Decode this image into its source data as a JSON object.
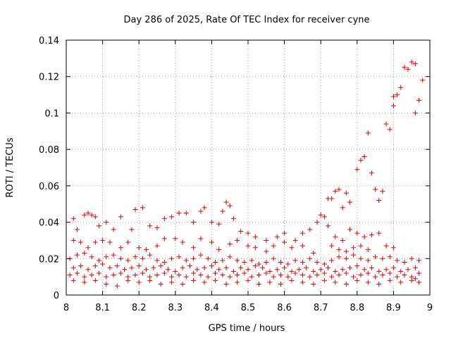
{
  "chart_data": {
    "type": "scatter",
    "title": "Day 286 of 2025, Rate Of TEC Index for receiver cyne",
    "xlabel": "GPS time / hours",
    "ylabel": "ROTI / TECUs",
    "xlim": [
      8,
      9
    ],
    "ylim": [
      0,
      0.14
    ],
    "x_ticks": [
      8,
      8.1,
      8.2,
      8.3,
      8.4,
      8.5,
      8.6,
      8.7,
      8.8,
      8.9,
      9
    ],
    "x_tick_labels": [
      "8",
      "8.1",
      "8.2",
      "8.3",
      "8.4",
      "8.5",
      "8.6",
      "8.7",
      "8.8",
      "8.9",
      "9"
    ],
    "y_ticks": [
      0,
      0.02,
      0.04,
      0.06,
      0.08,
      0.1,
      0.12,
      0.14
    ],
    "y_tick_labels": [
      "0",
      "0.02",
      "0.04",
      "0.06",
      "0.08",
      "0.1",
      "0.12",
      "0.14"
    ],
    "marker": "+",
    "color": "#e00000",
    "series": [
      {
        "name": "ROTI",
        "points": [
          [
            8.02,
            0.042
          ],
          [
            8.03,
            0.036
          ],
          [
            8.05,
            0.044
          ],
          [
            8.06,
            0.045
          ],
          [
            8.07,
            0.044
          ],
          [
            8.08,
            0.043
          ],
          [
            8.09,
            0.038
          ],
          [
            8.11,
            0.04
          ],
          [
            8.13,
            0.036
          ],
          [
            8.15,
            0.043
          ],
          [
            8.18,
            0.036
          ],
          [
            8.19,
            0.047
          ],
          [
            8.21,
            0.048
          ],
          [
            8.23,
            0.038
          ],
          [
            8.25,
            0.037
          ],
          [
            8.27,
            0.042
          ],
          [
            8.29,
            0.043
          ],
          [
            8.31,
            0.045
          ],
          [
            8.33,
            0.045
          ],
          [
            8.35,
            0.04
          ],
          [
            8.37,
            0.046
          ],
          [
            8.38,
            0.048
          ],
          [
            8.4,
            0.04
          ],
          [
            8.42,
            0.039
          ],
          [
            8.43,
            0.046
          ],
          [
            8.44,
            0.051
          ],
          [
            8.45,
            0.049
          ],
          [
            8.46,
            0.042
          ],
          [
            8.48,
            0.035
          ],
          [
            8.5,
            0.034
          ],
          [
            8.52,
            0.032
          ],
          [
            8.55,
            0.03
          ],
          [
            8.58,
            0.032
          ],
          [
            8.6,
            0.034
          ],
          [
            8.63,
            0.03
          ],
          [
            8.65,
            0.034
          ],
          [
            8.67,
            0.036
          ],
          [
            8.69,
            0.04
          ],
          [
            8.02,
            0.03
          ],
          [
            8.04,
            0.029
          ],
          [
            8.06,
            0.026
          ],
          [
            8.08,
            0.029
          ],
          [
            8.1,
            0.03
          ],
          [
            8.12,
            0.029
          ],
          [
            8.15,
            0.026
          ],
          [
            8.17,
            0.029
          ],
          [
            8.2,
            0.026
          ],
          [
            8.22,
            0.025
          ],
          [
            8.25,
            0.027
          ],
          [
            8.27,
            0.031
          ],
          [
            8.3,
            0.031
          ],
          [
            8.32,
            0.029
          ],
          [
            8.35,
            0.026
          ],
          [
            8.37,
            0.031
          ],
          [
            8.4,
            0.029
          ],
          [
            8.42,
            0.025
          ],
          [
            8.45,
            0.028
          ],
          [
            8.47,
            0.03
          ],
          [
            8.5,
            0.027
          ],
          [
            8.52,
            0.026
          ],
          [
            8.55,
            0.024
          ],
          [
            8.57,
            0.027
          ],
          [
            8.6,
            0.029
          ],
          [
            8.62,
            0.026
          ],
          [
            8.65,
            0.027
          ],
          [
            8.68,
            0.023
          ],
          [
            8.01,
            0.02
          ],
          [
            8.03,
            0.022
          ],
          [
            8.05,
            0.023
          ],
          [
            8.07,
            0.021
          ],
          [
            8.09,
            0.019
          ],
          [
            8.11,
            0.021
          ],
          [
            8.13,
            0.022
          ],
          [
            8.15,
            0.02
          ],
          [
            8.17,
            0.019
          ],
          [
            8.19,
            0.021
          ],
          [
            8.21,
            0.02
          ],
          [
            8.23,
            0.022
          ],
          [
            8.25,
            0.019
          ],
          [
            8.27,
            0.018
          ],
          [
            8.29,
            0.02
          ],
          [
            8.31,
            0.021
          ],
          [
            8.33,
            0.019
          ],
          [
            8.35,
            0.02
          ],
          [
            8.37,
            0.022
          ],
          [
            8.39,
            0.02
          ],
          [
            8.41,
            0.018
          ],
          [
            8.43,
            0.019
          ],
          [
            8.45,
            0.021
          ],
          [
            8.47,
            0.019
          ],
          [
            8.49,
            0.018
          ],
          [
            8.51,
            0.019
          ],
          [
            8.53,
            0.017
          ],
          [
            8.55,
            0.018
          ],
          [
            8.57,
            0.02
          ],
          [
            8.59,
            0.018
          ],
          [
            8.61,
            0.017
          ],
          [
            8.63,
            0.019
          ],
          [
            8.65,
            0.018
          ],
          [
            8.67,
            0.02
          ],
          [
            8.69,
            0.018
          ],
          [
            8.71,
            0.017
          ],
          [
            8.73,
            0.019
          ],
          [
            8.75,
            0.021
          ],
          [
            8.77,
            0.02
          ],
          [
            8.79,
            0.022
          ],
          [
            8.81,
            0.02
          ],
          [
            8.83,
            0.019
          ],
          [
            8.85,
            0.021
          ],
          [
            8.87,
            0.02
          ],
          [
            8.89,
            0.021
          ],
          [
            8.91,
            0.019
          ],
          [
            8.93,
            0.018
          ],
          [
            8.95,
            0.02
          ],
          [
            8.97,
            0.019
          ],
          [
            8.02,
            0.015
          ],
          [
            8.04,
            0.016
          ],
          [
            8.06,
            0.014
          ],
          [
            8.08,
            0.016
          ],
          [
            8.1,
            0.017
          ],
          [
            8.12,
            0.015
          ],
          [
            8.14,
            0.016
          ],
          [
            8.16,
            0.014
          ],
          [
            8.18,
            0.015
          ],
          [
            8.2,
            0.016
          ],
          [
            8.22,
            0.014
          ],
          [
            8.24,
            0.015
          ],
          [
            8.26,
            0.016
          ],
          [
            8.28,
            0.014
          ],
          [
            8.3,
            0.013
          ],
          [
            8.32,
            0.015
          ],
          [
            8.34,
            0.016
          ],
          [
            8.36,
            0.014
          ],
          [
            8.38,
            0.015
          ],
          [
            8.4,
            0.016
          ],
          [
            8.42,
            0.014
          ],
          [
            8.44,
            0.015
          ],
          [
            8.46,
            0.013
          ],
          [
            8.48,
            0.015
          ],
          [
            8.5,
            0.014
          ],
          [
            8.52,
            0.016
          ],
          [
            8.54,
            0.015
          ],
          [
            8.56,
            0.013
          ],
          [
            8.58,
            0.014
          ],
          [
            8.6,
            0.015
          ],
          [
            8.62,
            0.013
          ],
          [
            8.64,
            0.014
          ],
          [
            8.66,
            0.015
          ],
          [
            8.68,
            0.013
          ],
          [
            8.7,
            0.014
          ],
          [
            8.72,
            0.015
          ],
          [
            8.74,
            0.013
          ],
          [
            8.76,
            0.014
          ],
          [
            8.78,
            0.015
          ],
          [
            8.8,
            0.016
          ],
          [
            8.82,
            0.014
          ],
          [
            8.84,
            0.015
          ],
          [
            8.86,
            0.013
          ],
          [
            8.88,
            0.014
          ],
          [
            8.9,
            0.015
          ],
          [
            8.92,
            0.013
          ],
          [
            8.94,
            0.014
          ],
          [
            8.96,
            0.015
          ],
          [
            8.01,
            0.011
          ],
          [
            8.03,
            0.012
          ],
          [
            8.05,
            0.01
          ],
          [
            8.07,
            0.011
          ],
          [
            8.09,
            0.012
          ],
          [
            8.11,
            0.01
          ],
          [
            8.13,
            0.011
          ],
          [
            8.15,
            0.012
          ],
          [
            8.17,
            0.01
          ],
          [
            8.19,
            0.011
          ],
          [
            8.21,
            0.012
          ],
          [
            8.23,
            0.01
          ],
          [
            8.25,
            0.011
          ],
          [
            8.27,
            0.012
          ],
          [
            8.29,
            0.01
          ],
          [
            8.31,
            0.011
          ],
          [
            8.33,
            0.01
          ],
          [
            8.35,
            0.012
          ],
          [
            8.37,
            0.011
          ],
          [
            8.39,
            0.01
          ],
          [
            8.41,
            0.012
          ],
          [
            8.43,
            0.011
          ],
          [
            8.45,
            0.01
          ],
          [
            8.47,
            0.011
          ],
          [
            8.49,
            0.012
          ],
          [
            8.51,
            0.01
          ],
          [
            8.53,
            0.011
          ],
          [
            8.55,
            0.012
          ],
          [
            8.57,
            0.01
          ],
          [
            8.59,
            0.011
          ],
          [
            8.61,
            0.01
          ],
          [
            8.63,
            0.012
          ],
          [
            8.65,
            0.011
          ],
          [
            8.67,
            0.01
          ],
          [
            8.69,
            0.011
          ],
          [
            8.71,
            0.012
          ],
          [
            8.73,
            0.01
          ],
          [
            8.75,
            0.011
          ],
          [
            8.77,
            0.012
          ],
          [
            8.79,
            0.01
          ],
          [
            8.81,
            0.011
          ],
          [
            8.83,
            0.012
          ],
          [
            8.85,
            0.01
          ],
          [
            8.87,
            0.011
          ],
          [
            8.89,
            0.012
          ],
          [
            8.91,
            0.01
          ],
          [
            8.93,
            0.011
          ],
          [
            8.95,
            0.01
          ],
          [
            8.97,
            0.012
          ],
          [
            8.02,
            0.008
          ],
          [
            8.05,
            0.007
          ],
          [
            8.08,
            0.008
          ],
          [
            8.11,
            0.006
          ],
          [
            8.14,
            0.005
          ],
          [
            8.17,
            0.008
          ],
          [
            8.2,
            0.007
          ],
          [
            8.23,
            0.008
          ],
          [
            8.26,
            0.006
          ],
          [
            8.29,
            0.007
          ],
          [
            8.32,
            0.006
          ],
          [
            8.35,
            0.008
          ],
          [
            8.38,
            0.007
          ],
          [
            8.41,
            0.008
          ],
          [
            8.44,
            0.006
          ],
          [
            8.47,
            0.007
          ],
          [
            8.5,
            0.008
          ],
          [
            8.53,
            0.006
          ],
          [
            8.56,
            0.007
          ],
          [
            8.59,
            0.006
          ],
          [
            8.62,
            0.008
          ],
          [
            8.65,
            0.007
          ],
          [
            8.68,
            0.006
          ],
          [
            8.71,
            0.008
          ],
          [
            8.74,
            0.007
          ],
          [
            8.77,
            0.006
          ],
          [
            8.8,
            0.008
          ],
          [
            8.83,
            0.007
          ],
          [
            8.86,
            0.006
          ],
          [
            8.89,
            0.008
          ],
          [
            8.92,
            0.007
          ],
          [
            8.95,
            0.008
          ],
          [
            8.96,
            0.009
          ],
          [
            8.97,
            0.007
          ],
          [
            8.7,
            0.044
          ],
          [
            8.71,
            0.043
          ],
          [
            8.72,
            0.053
          ],
          [
            8.73,
            0.053
          ],
          [
            8.74,
            0.057
          ],
          [
            8.75,
            0.058
          ],
          [
            8.76,
            0.048
          ],
          [
            8.77,
            0.056
          ],
          [
            8.78,
            0.051
          ],
          [
            8.8,
            0.069
          ],
          [
            8.81,
            0.074
          ],
          [
            8.82,
            0.076
          ],
          [
            8.83,
            0.089
          ],
          [
            8.84,
            0.067
          ],
          [
            8.85,
            0.058
          ],
          [
            8.86,
            0.052
          ],
          [
            8.87,
            0.057
          ],
          [
            8.88,
            0.094
          ],
          [
            8.89,
            0.091
          ],
          [
            8.9,
            0.104
          ],
          [
            8.9,
            0.109
          ],
          [
            8.91,
            0.11
          ],
          [
            8.92,
            0.114
          ],
          [
            8.93,
            0.125
          ],
          [
            8.94,
            0.124
          ],
          [
            8.95,
            0.128
          ],
          [
            8.96,
            0.127
          ],
          [
            8.96,
            0.1
          ],
          [
            8.97,
            0.107
          ],
          [
            8.98,
            0.118
          ],
          [
            8.72,
            0.038
          ],
          [
            8.74,
            0.032
          ],
          [
            8.76,
            0.03
          ],
          [
            8.78,
            0.036
          ],
          [
            8.8,
            0.034
          ],
          [
            8.82,
            0.032
          ],
          [
            8.84,
            0.033
          ],
          [
            8.86,
            0.034
          ],
          [
            8.88,
            0.027
          ],
          [
            8.9,
            0.026
          ],
          [
            8.73,
            0.027
          ],
          [
            8.75,
            0.025
          ],
          [
            8.77,
            0.024
          ],
          [
            8.79,
            0.026
          ],
          [
            8.81,
            0.027
          ],
          [
            8.83,
            0.025
          ]
        ]
      }
    ]
  }
}
